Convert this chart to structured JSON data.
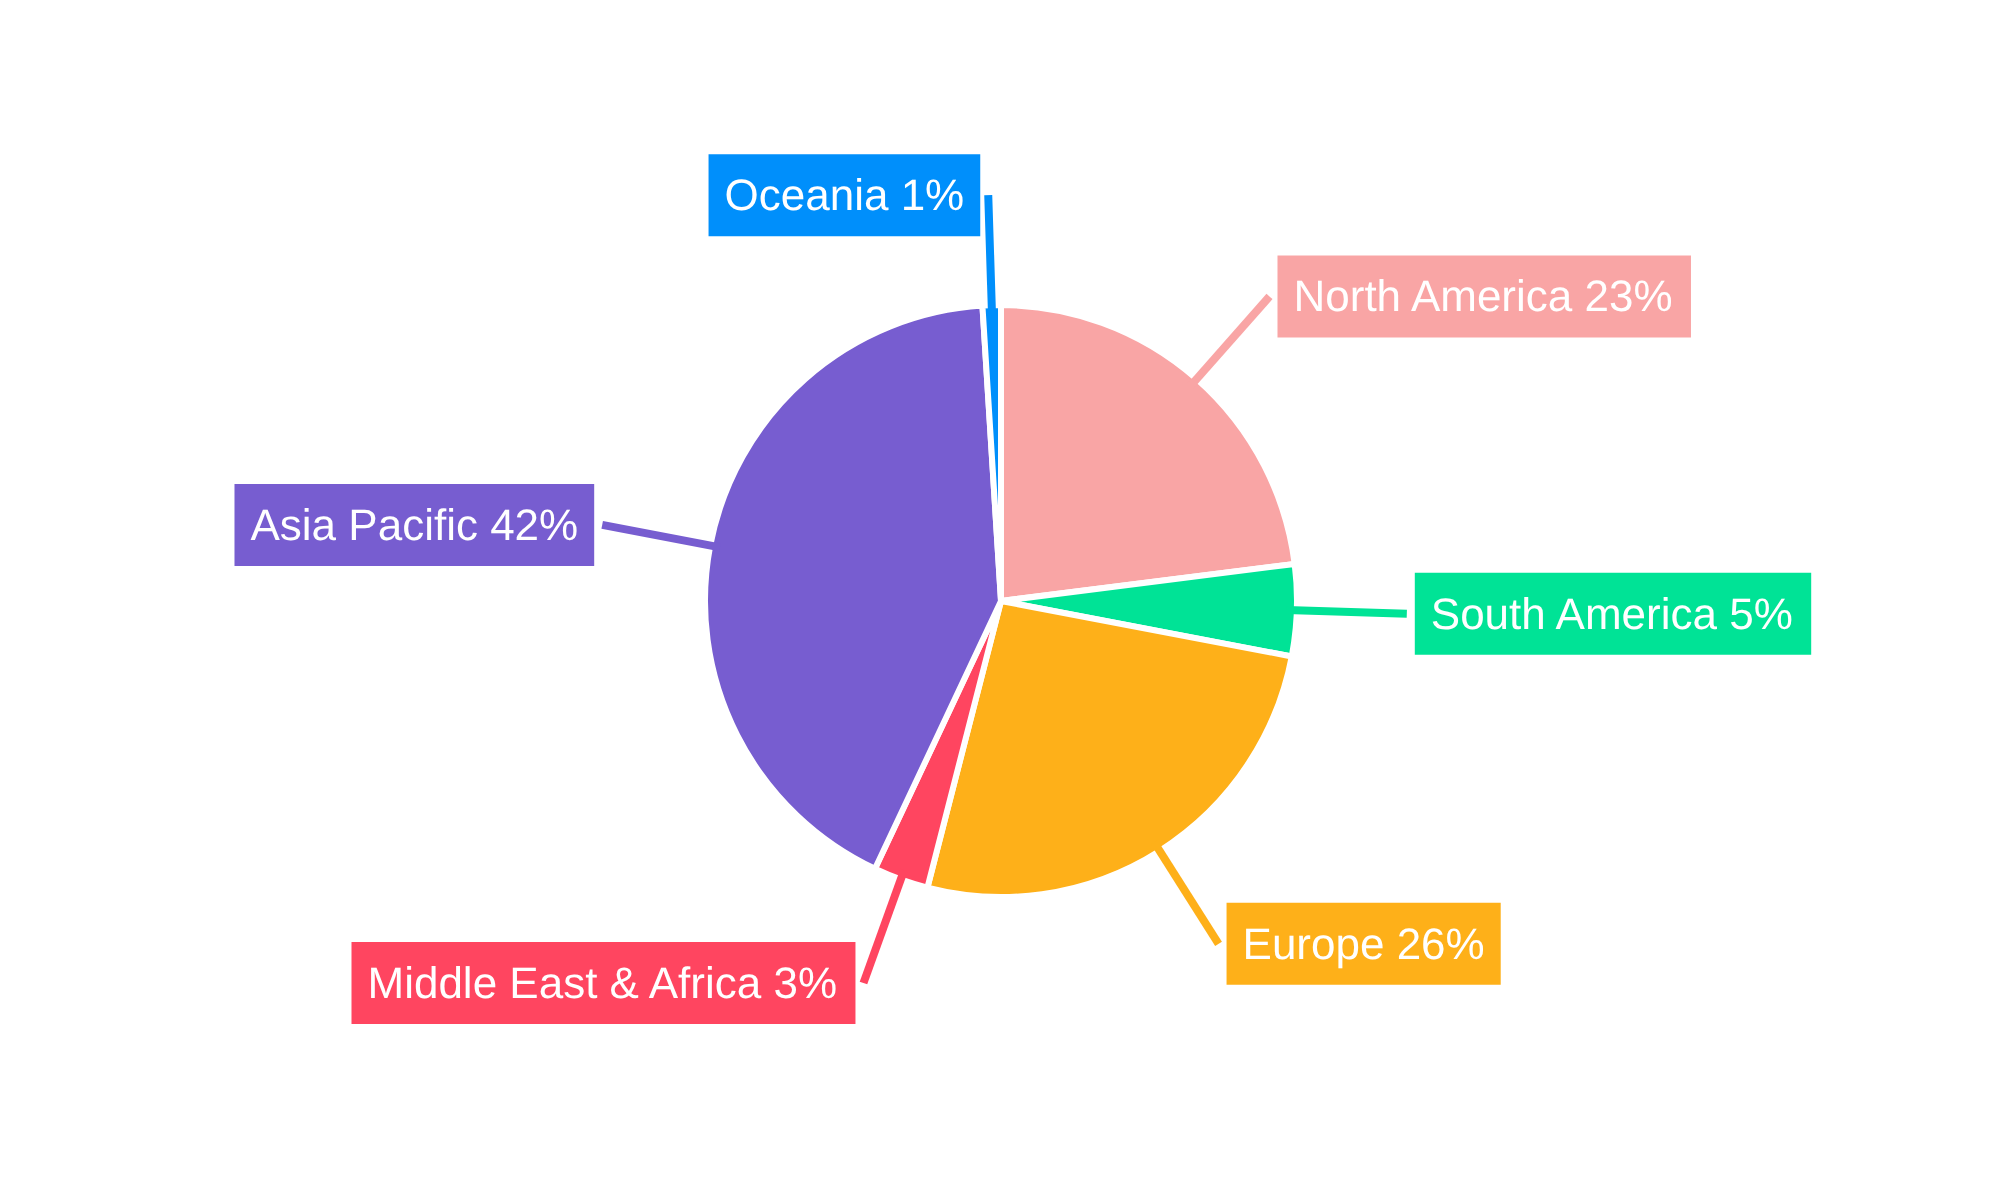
{
  "chart_data": {
    "type": "pie",
    "categories": [
      "North America",
      "South America",
      "Europe",
      "Middle East & Africa",
      "Asia Pacific",
      "Oceania"
    ],
    "values": [
      23,
      5,
      26,
      3,
      42,
      1
    ],
    "value_labels": [
      "23%",
      "5%",
      "26%",
      "3%",
      "42%",
      "1%"
    ],
    "colors": [
      "#f9a5a5",
      "#00e396",
      "#feb019",
      "#ff4560",
      "#775dd0",
      "#008ffb"
    ]
  }
}
